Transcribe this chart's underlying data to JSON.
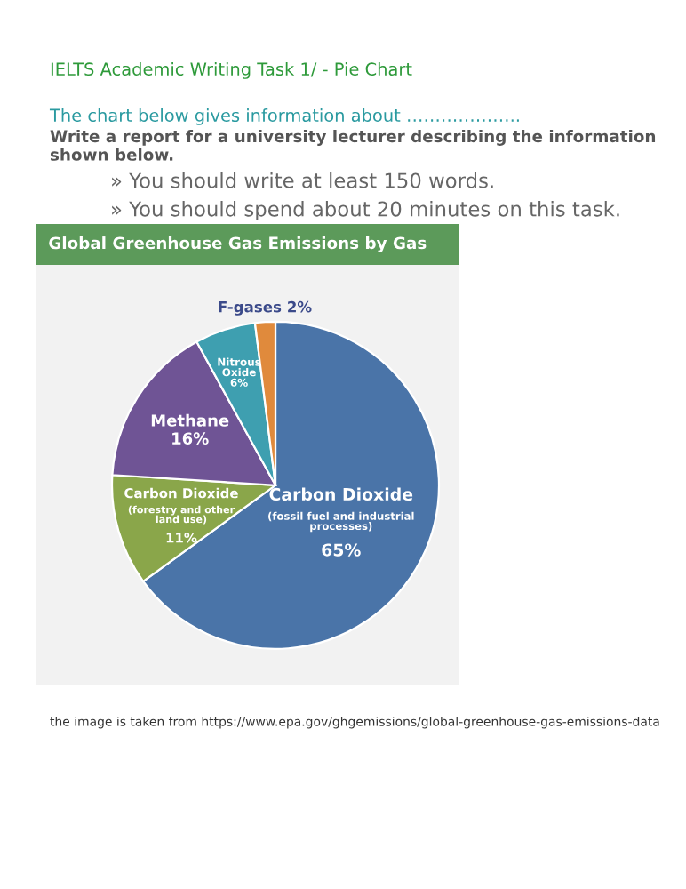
{
  "chart_data": {
    "type": "pie",
    "title": "Global Greenhouse Gas Emissions by Gas",
    "categories": [
      "Carbon Dioxide\n(fossil fuel and industrial\nprocesses)",
      "Carbon Dioxide\n(forestry and other\nland use)",
      "Methane",
      "Nitrous\nOxide",
      "F-gases"
    ],
    "values": [
      65,
      11,
      16,
      6,
      2
    ],
    "value_labels": [
      "65%",
      "11%",
      "16%",
      "6%",
      "2%"
    ],
    "colors": [
      "#4a74a8",
      "#8aa64a",
      "#6f5495",
      "#3e9fb0",
      "#e08a3c"
    ],
    "annotations": [
      "IELTS Academic Writing Task 1/ - Pie Chart",
      "The chart below gives information about ………………..",
      "Write a report for a university lecturer describing the information shown below.",
      "» You should write at least 150 words.",
      "» You should spend about 20 minutes on this task.",
      "the image is taken from https://www.epa.gov/ghgemissions/global-greenhouse-gas-emissions-data"
    ],
    "legend": false
  }
}
